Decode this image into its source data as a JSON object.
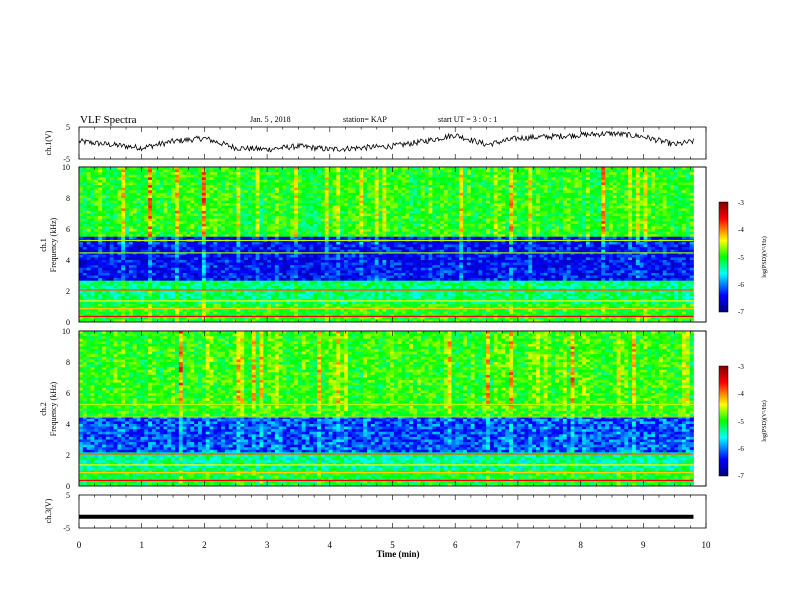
{
  "header": {
    "title": "VLF Spectra",
    "date": "Jan. 5 , 2018",
    "station": "station= KAP",
    "start": "start  UT =  3 : 0  : 1"
  },
  "chart_data": [
    {
      "type": "line",
      "panel": "ch1-waveform",
      "ylabel": "ch.1(V)",
      "ylim": [
        -5,
        5
      ],
      "yticks": [
        "5",
        "-5"
      ],
      "xlim": [
        0,
        10
      ],
      "x": [
        0,
        0.5,
        1,
        1.5,
        2,
        2.5,
        3,
        3.5,
        4,
        4.5,
        5,
        5.5,
        6,
        6.5,
        7,
        7.5,
        8,
        8.5,
        9,
        9.5,
        9.8
      ],
      "y": [
        0.5,
        -0.5,
        -1.5,
        0.5,
        1.5,
        -1.5,
        -2,
        -1,
        -2,
        -1.5,
        -1,
        0.5,
        2.5,
        -0.5,
        1.5,
        2,
        2.5,
        3,
        2,
        -0.5,
        0.5
      ]
    },
    {
      "type": "heatmap",
      "panel": "ch1-spectrogram",
      "ylabel_line1": "ch.1",
      "ylabel_line2": "Frequency  (kHz)",
      "ylim": [
        0,
        10
      ],
      "yticks": [
        "0",
        "2",
        "4",
        "6",
        "8",
        "10"
      ],
      "xlim": [
        0,
        10
      ],
      "colorbar": {
        "label": "log(PSD)(V²/Hz)",
        "range": [
          -7,
          -3
        ],
        "ticks": [
          "-3",
          "-4",
          "-5",
          "-6",
          "-7"
        ]
      }
    },
    {
      "type": "heatmap",
      "panel": "ch2-spectrogram",
      "ylabel_line1": "ch.2",
      "ylabel_line2": "Frequency  (kHz)",
      "ylim": [
        0,
        10
      ],
      "yticks": [
        "0",
        "2",
        "4",
        "6",
        "8",
        "10"
      ],
      "xlim": [
        0,
        10
      ],
      "colorbar": {
        "label": "log(PSD)(V²/Hz)",
        "range": [
          -7,
          -3
        ],
        "ticks": [
          "-3",
          "-4",
          "-5",
          "-6",
          "-7"
        ]
      }
    },
    {
      "type": "line",
      "panel": "ch3-waveform",
      "ylabel": "ch.3(V)",
      "ylim": [
        -5,
        5
      ],
      "yticks": [
        "5",
        "-5"
      ],
      "xlim": [
        0,
        10
      ],
      "x": [
        0,
        9.8
      ],
      "y": [
        -1.6,
        -1.6
      ]
    }
  ],
  "xaxis": {
    "label": "Time  (min)",
    "ticks": [
      "0",
      "1",
      "2",
      "3",
      "4",
      "5",
      "6",
      "7",
      "8",
      "9",
      "10"
    ]
  },
  "colors": {
    "jet": [
      "#00007f",
      "#0000ff",
      "#00ffff",
      "#00ff00",
      "#ffff00",
      "#ff0000",
      "#7f0000"
    ]
  }
}
